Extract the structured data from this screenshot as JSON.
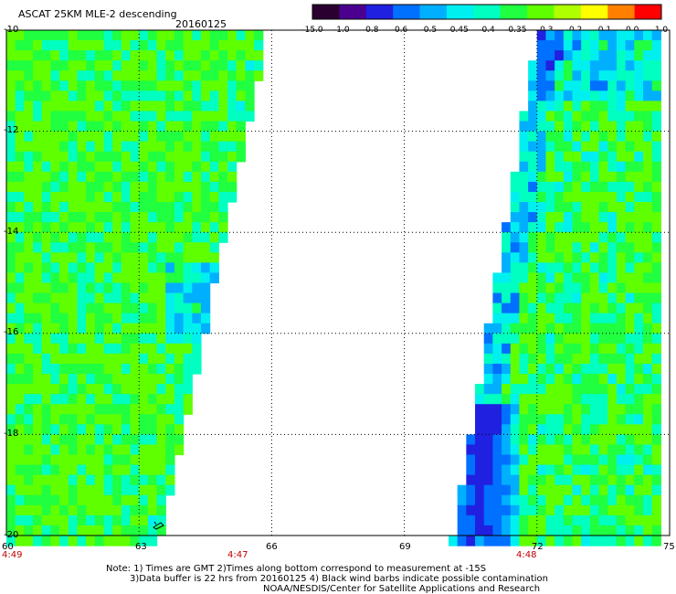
{
  "header": {
    "title": "ASCAT 25KM MLE-2 descending",
    "date": "20160125"
  },
  "colorbar": {
    "labels": [
      "-15.0",
      "-1.0",
      "-0.8",
      "-0.6",
      "-0.5",
      "-0.45",
      "-0.4",
      "-0.35",
      "-0.3",
      "-0.2",
      "-0.1",
      "0.0",
      "1.0"
    ],
    "colors": [
      "#2a0030",
      "#4b0090",
      "#2020e0",
      "#0070ff",
      "#00b0ff",
      "#00f0f0",
      "#00ffc0",
      "#20ff40",
      "#60ff00",
      "#b0ff00",
      "#ffff00",
      "#ff8000",
      "#ff0000"
    ]
  },
  "chart_data": {
    "type": "heatmap",
    "title": "ASCAT 25KM MLE-2 descending",
    "xlabel": "",
    "ylabel": "",
    "xlim": [
      60,
      75
    ],
    "ylim": [
      -20,
      -10
    ],
    "x_ticks": [
      "60",
      "63",
      "66",
      "69",
      "72",
      "75"
    ],
    "y_ticks": [
      "-10",
      "-12",
      "-14",
      "-16",
      "-18",
      "-20"
    ],
    "grid": true,
    "swaths": [
      {
        "name": "west",
        "typical_value": -0.3,
        "west_lon": 60,
        "east_edge_top_lon": 66,
        "east_edge_bottom_lon": 63.6
      },
      {
        "name": "east",
        "typical_value": -0.32,
        "west_edge_top_lon": 71.9,
        "west_edge_bottom_lon": 70,
        "east_lon": 75,
        "low_value_region": {
          "lon": [
            70.2,
            71.5
          ],
          "lat": [
            -20,
            -17.2
          ],
          "value": -0.6
        }
      }
    ],
    "time_labels": [
      {
        "lon": 60,
        "text": "4:49"
      },
      {
        "lon": 65.3,
        "text": "4:47"
      },
      {
        "lon": 71.8,
        "text": "4:48"
      }
    ]
  },
  "notes": {
    "line1": "Note: 1) Times are GMT 2)Times along bottom correspond to measurement at -15S",
    "line2": "3)Data buffer is 22 hrs from 20160125 4) Black wind barbs indicate possible contamination",
    "line3": "NOAA/NESDIS/Center for Satellite Applications and Research"
  }
}
